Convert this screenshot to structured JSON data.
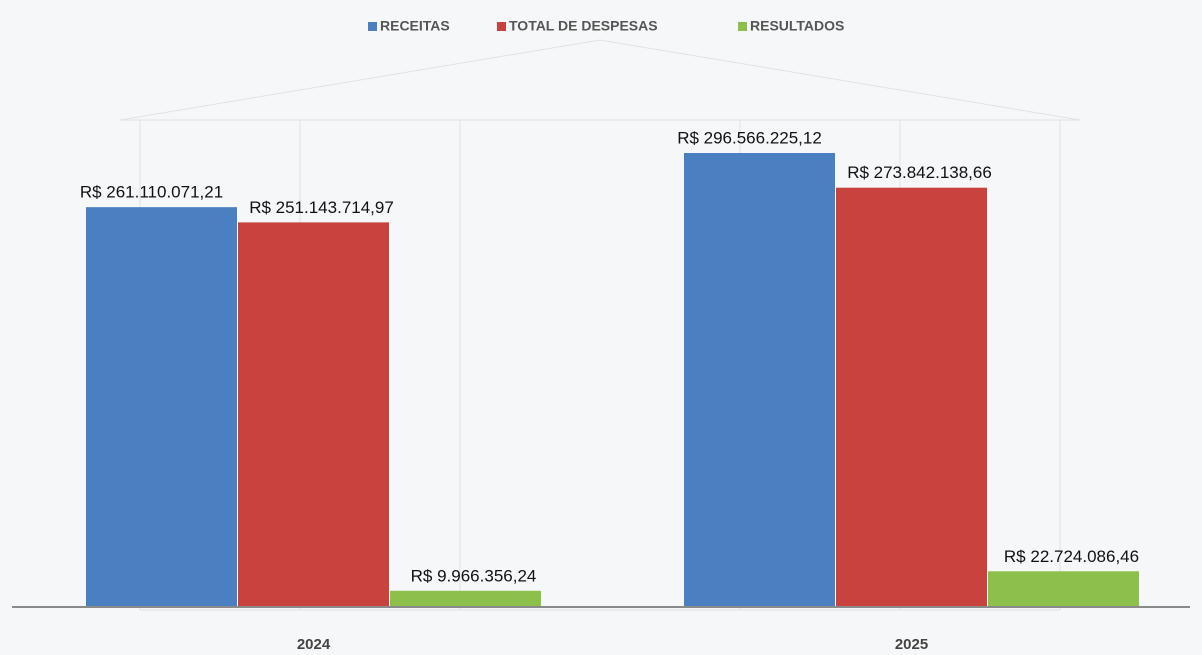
{
  "chart_data": {
    "type": "bar",
    "categories": [
      "2024",
      "2025"
    ],
    "series": [
      {
        "name": "RECEITAS",
        "color": "#4a7fc2",
        "values": [
          261110071.21,
          296566225.12
        ],
        "value_labels": [
          "R$ 261.110.071,21",
          "R$ 296.566.225,12"
        ]
      },
      {
        "name": "TOTAL DE DESPESAS",
        "color": "#c8423e",
        "values": [
          251143714.97,
          273842138.66
        ],
        "value_labels": [
          "R$ 251.143.714,97",
          "R$ 273.842.138,66"
        ]
      },
      {
        "name": "RESULTADOS",
        "color": "#8dbf4b",
        "values": [
          9966356.24,
          22724086.46
        ],
        "value_labels": [
          "R$ 9.966.356,24",
          "R$ 22.724.086,46"
        ]
      }
    ],
    "legend": "top"
  }
}
